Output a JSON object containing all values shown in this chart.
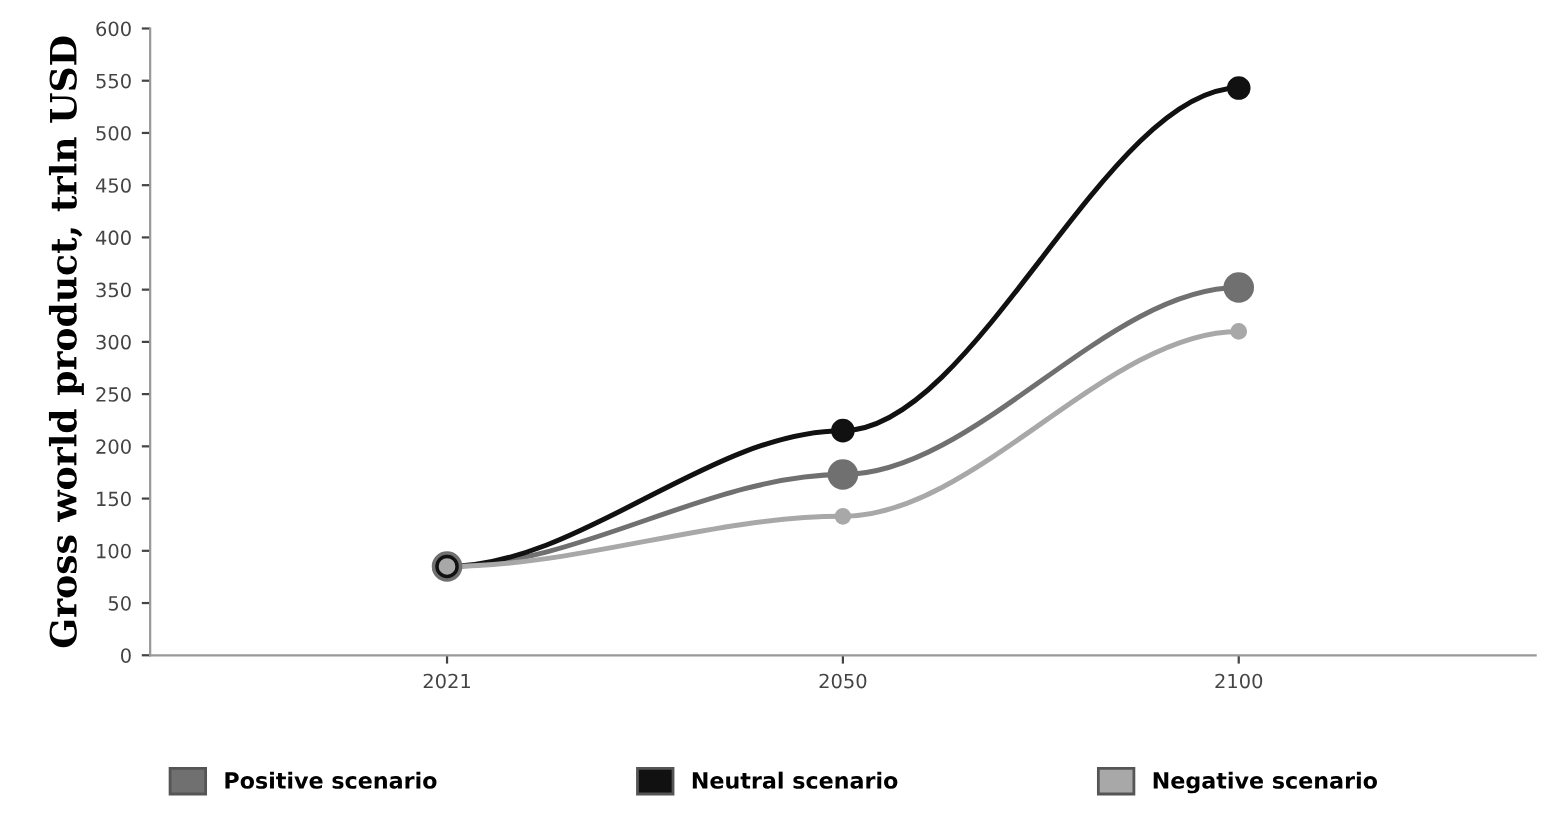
{
  "chart_data": {
    "type": "line",
    "ylabel": "Gross world product, trln USD",
    "categories": [
      "2021",
      "2050",
      "2100"
    ],
    "series": [
      {
        "name": "Positive scenario",
        "color": "#707070",
        "values": [
          85,
          173,
          352
        ]
      },
      {
        "name": "Neutral scenario",
        "color": "#111111",
        "values": [
          85,
          215,
          543
        ]
      },
      {
        "name": "Negative scenario",
        "color": "#a8a8a8",
        "values": [
          85,
          133,
          310
        ]
      }
    ],
    "ylim": [
      0,
      600
    ],
    "yticks": [
      0,
      50,
      100,
      150,
      200,
      250,
      300,
      350,
      400,
      450,
      500,
      550,
      600
    ],
    "grid": false,
    "legend": "bottom",
    "marker": "circle",
    "line_style": "solid"
  }
}
